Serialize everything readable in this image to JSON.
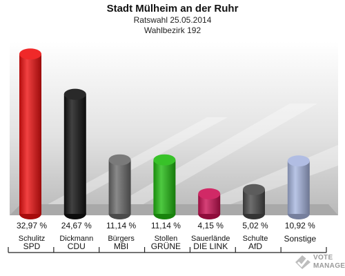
{
  "chart_data": {
    "type": "bar",
    "title": "Stadt Mülheim an der Ruhr",
    "subtitle_lines": [
      "Ratswahl 25.05.2014",
      "Wahlbezirk 192"
    ],
    "categories": [
      "SPD",
      "CDU",
      "MBI",
      "GRÜNE",
      "DIE LINK",
      "AfD",
      "Sonstige"
    ],
    "candidates": [
      "Schulitz",
      "Dickmann",
      "Bürgers",
      "Stollen",
      "Sauerlände",
      "Schulte",
      ""
    ],
    "values": [
      32.97,
      24.67,
      11.14,
      11.14,
      4.15,
      5.02,
      10.92
    ],
    "value_labels": [
      "32,97 %",
      "24,67 %",
      "11,14 %",
      "11,14 %",
      "4,15 %",
      "5,02 %",
      "10,92 %"
    ],
    "colors": [
      "#ee1111",
      "#111111",
      "#6b6b6b",
      "#22bb11",
      "#cc1155",
      "#4a4a4a",
      "#a8b6e0"
    ],
    "ylim": [
      0,
      35
    ],
    "grid": false,
    "legend": "none"
  },
  "watermark": {
    "text_line1": "VOTE",
    "text_line2": "MANAGER"
  }
}
